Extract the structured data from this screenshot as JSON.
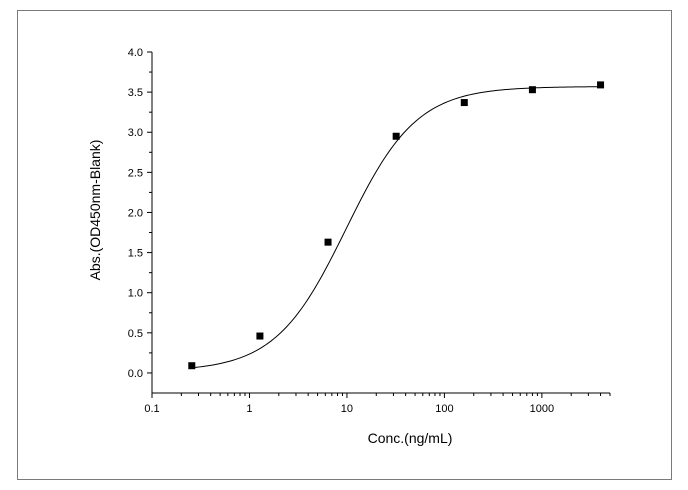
{
  "chart_data": {
    "type": "scatter",
    "title": "",
    "xlabel": "Conc.(ng/mL)",
    "ylabel": "Abs.(OD450nm-Blank)",
    "x_scale": "log",
    "xlim": [
      0.1,
      5000
    ],
    "ylim": [
      -0.25,
      4.0
    ],
    "x_ticks": [
      {
        "value": 0.1,
        "label": "0.1"
      },
      {
        "value": 1,
        "label": "1"
      },
      {
        "value": 10,
        "label": "10"
      },
      {
        "value": 100,
        "label": "100"
      },
      {
        "value": 1000,
        "label": "1000"
      }
    ],
    "y_ticks": [
      {
        "value": 0.0,
        "label": "0.0"
      },
      {
        "value": 0.5,
        "label": "0.5"
      },
      {
        "value": 1.0,
        "label": "1.0"
      },
      {
        "value": 1.5,
        "label": "1.5"
      },
      {
        "value": 2.0,
        "label": "2.0"
      },
      {
        "value": 2.5,
        "label": "2.5"
      },
      {
        "value": 3.0,
        "label": "3.0"
      },
      {
        "value": 3.5,
        "label": "3.5"
      },
      {
        "value": 4.0,
        "label": "4.0"
      }
    ],
    "grid": false,
    "legend": "none",
    "series": [
      {
        "points": [
          {
            "x": 0.256,
            "y": 0.09
          },
          {
            "x": 1.28,
            "y": 0.46
          },
          {
            "x": 6.4,
            "y": 1.63
          },
          {
            "x": 32,
            "y": 2.95
          },
          {
            "x": 160,
            "y": 3.37
          },
          {
            "x": 800,
            "y": 3.53
          },
          {
            "x": 4000,
            "y": 3.59
          }
        ],
        "fit": {
          "model": "4PL",
          "bottom": 0.02,
          "top": 3.57,
          "ec50": 9.8,
          "hill": 1.2
        }
      }
    ],
    "colors": {
      "marker": "#000000",
      "line": "#000000"
    }
  }
}
